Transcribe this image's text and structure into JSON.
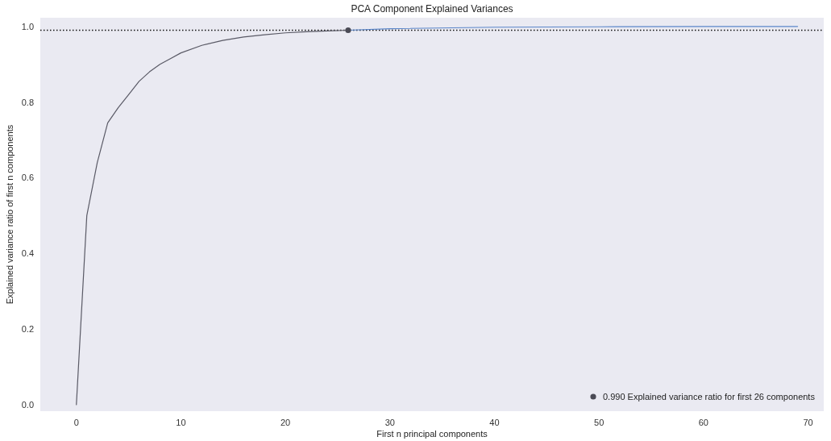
{
  "chart_data": {
    "type": "line",
    "title": "PCA Component Explained Variances",
    "xlabel": "First n principal components",
    "ylabel": "Explained variance ratio of first n components",
    "xlim": [
      -3.45,
      71.5
    ],
    "ylim": [
      -0.017,
      1.023
    ],
    "xticks": [
      0,
      10,
      20,
      30,
      40,
      50,
      60,
      70
    ],
    "yticks": [
      {
        "value": 0,
        "label": "0.0"
      },
      {
        "value": 0.2,
        "label": "0.2"
      },
      {
        "value": 0.4,
        "label": "0.4"
      },
      {
        "value": 0.6,
        "label": "0.6"
      },
      {
        "value": 0.8,
        "label": "0.8"
      },
      {
        "value": 1,
        "label": "1.0"
      }
    ],
    "grid": false,
    "legend": "bottom right",
    "line_style": "solid",
    "marker": "none",
    "series": [
      {
        "color": "#5a5a66",
        "x": [
          0,
          1,
          2,
          3,
          4,
          5,
          6,
          7,
          8,
          9,
          10,
          12,
          14,
          16,
          18,
          20,
          22,
          24,
          26
        ],
        "values": [
          0,
          0.5,
          0.64,
          0.745,
          0.785,
          0.82,
          0.855,
          0.88,
          0.9,
          0.915,
          0.93,
          0.95,
          0.963,
          0.972,
          0.978,
          0.983,
          0.986,
          0.988,
          0.99
        ]
      },
      {
        "color": "#5b86c9",
        "x": [
          26,
          30,
          40,
          50,
          60,
          69
        ],
        "values": [
          0.99,
          0.994,
          0.998,
          0.999,
          1.0,
          1.0
        ]
      },
      {
        "type": "scatter",
        "name": "0.990 Explained variance ratio for first 26 components",
        "color": "#4a4a55",
        "marker": "circle",
        "x": [
          26
        ],
        "values": [
          0.99
        ]
      }
    ],
    "ref_lines": [
      {
        "axis": "y",
        "value": 0.99,
        "color": "#111111",
        "line_style": "dotted"
      }
    ]
  }
}
